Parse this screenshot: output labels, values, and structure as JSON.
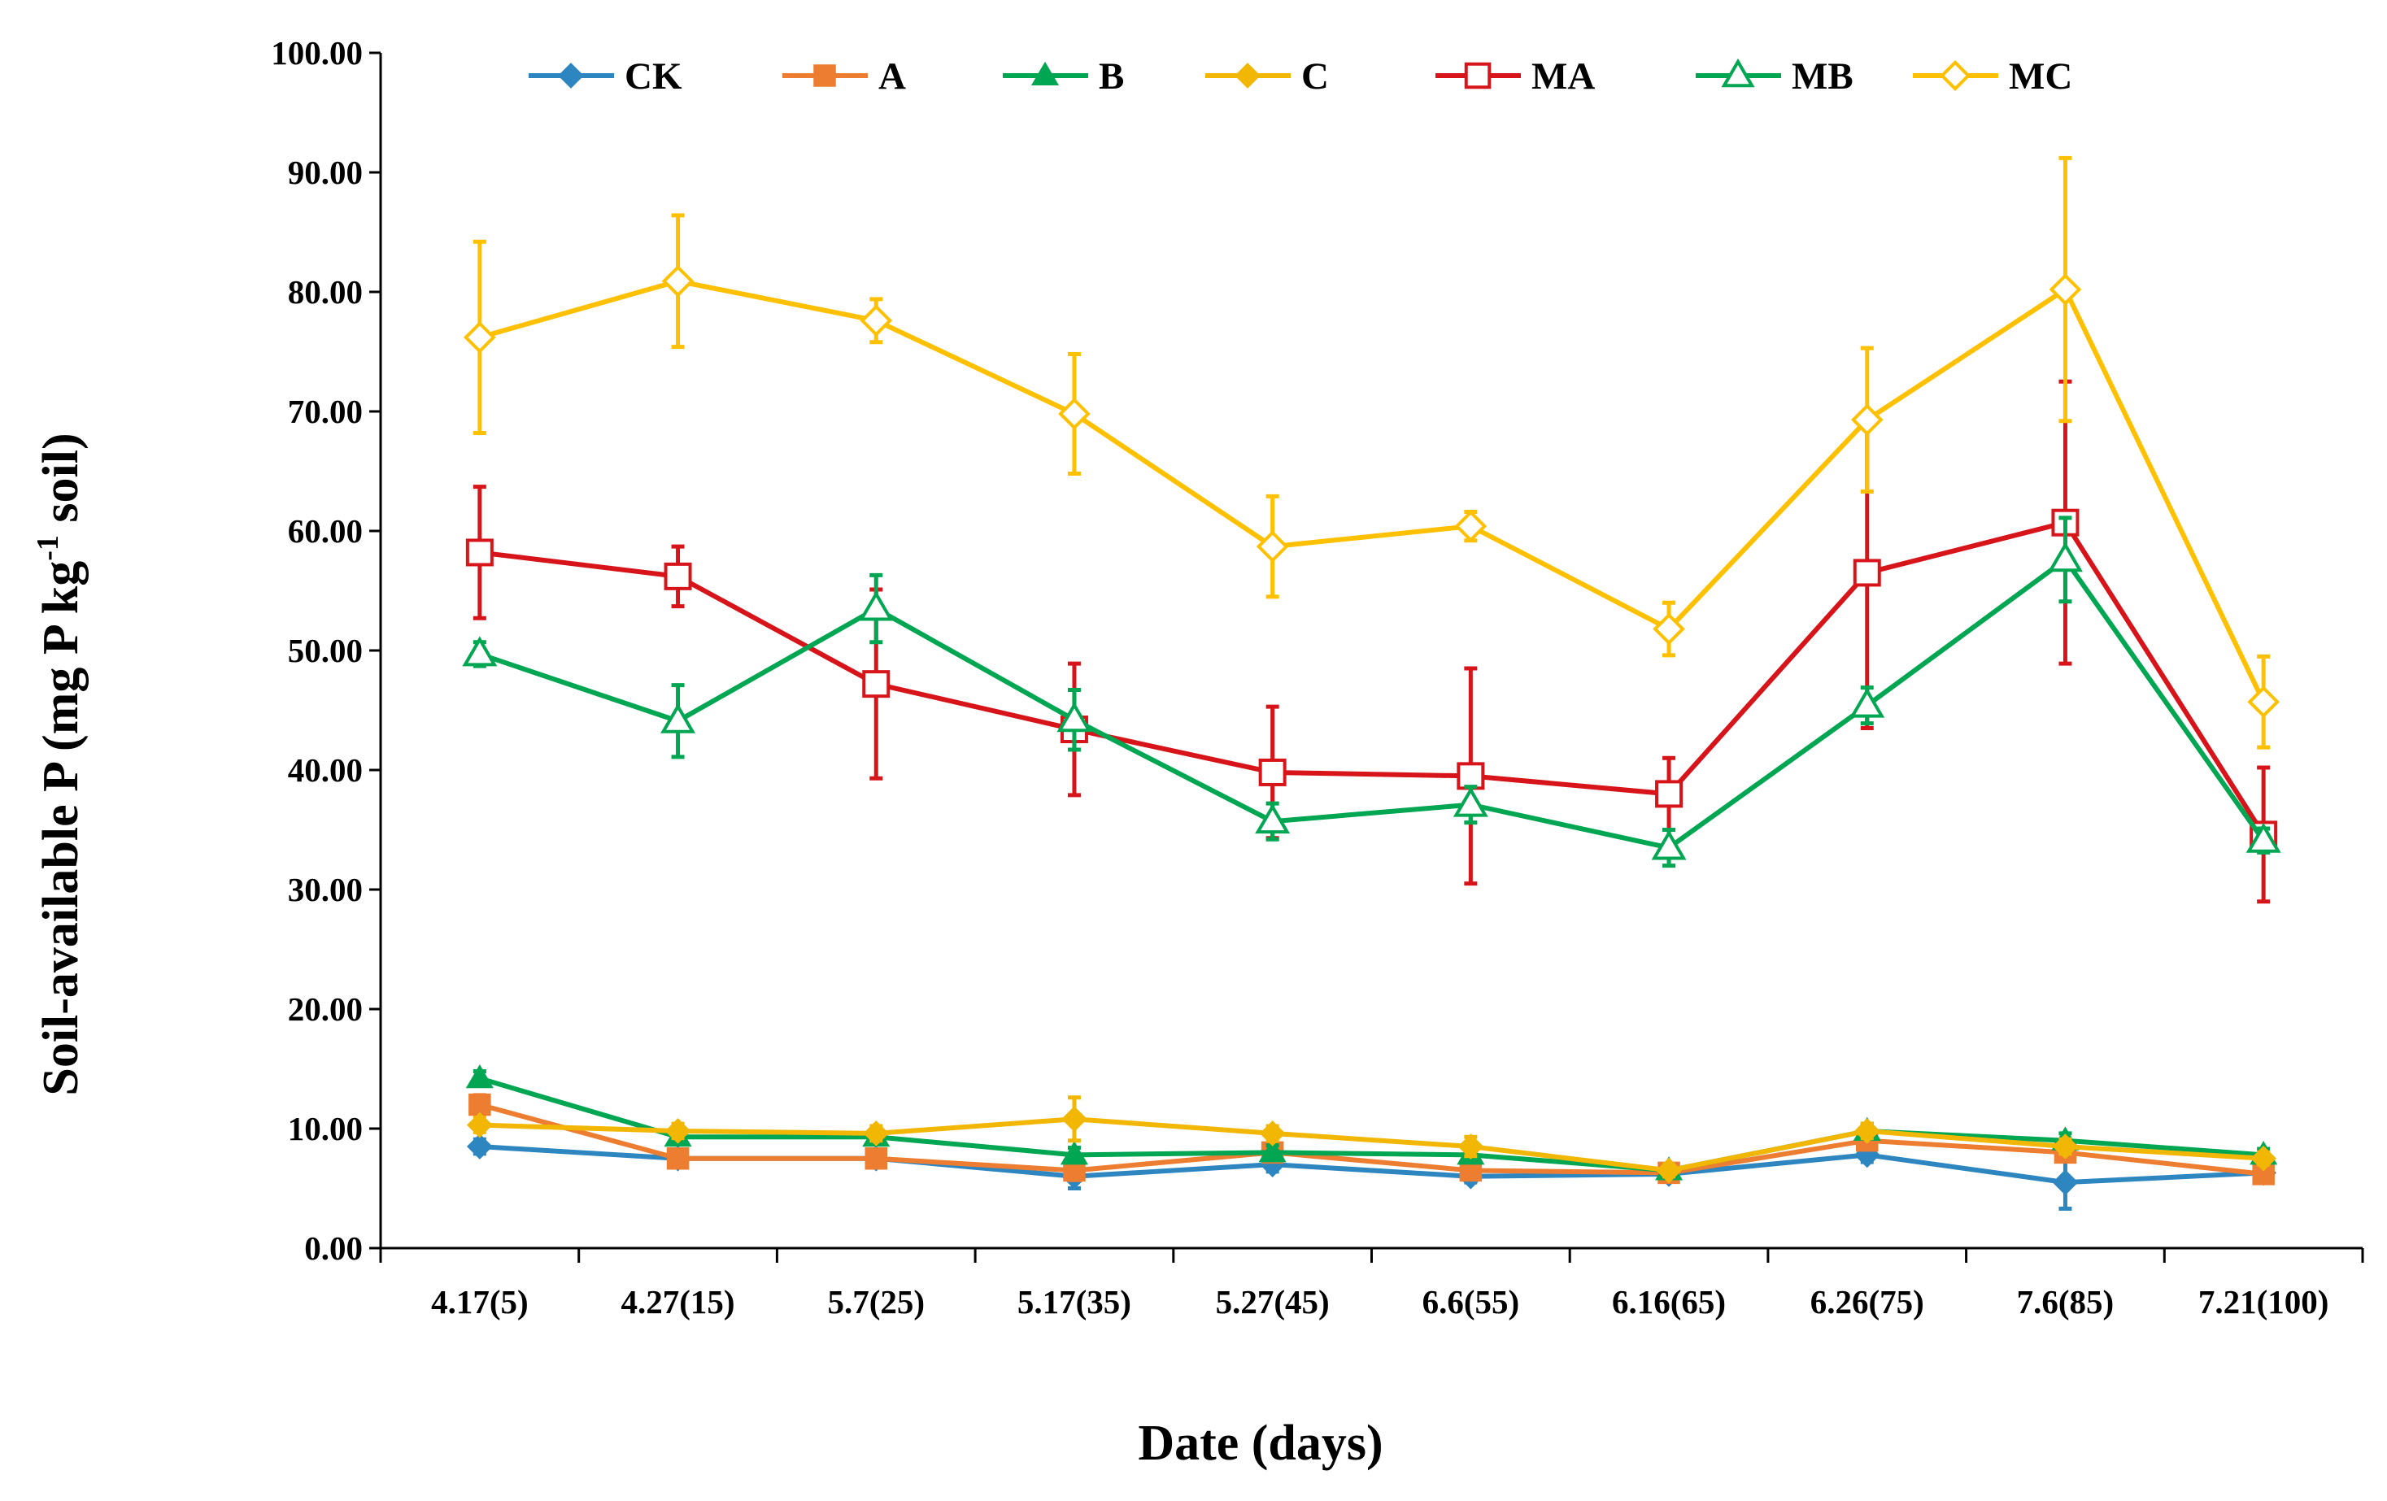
{
  "chart_data": {
    "type": "line",
    "xlabel": "Date (days)",
    "ylabel": {
      "main": "Soil-available P (mg P kg",
      "sup": "-1",
      "tail": " soil)"
    },
    "categories": [
      "4.17(5)",
      "4.27(15)",
      "5.7(25)",
      "5.17(35)",
      "5.27(45)",
      "6.6(55)",
      "6.16(65)",
      "6.26(75)",
      "7.6(85)",
      "7.21(100)"
    ],
    "ylim": [
      0,
      100
    ],
    "yticks": [
      "0.00",
      "10.00",
      "20.00",
      "30.00",
      "40.00",
      "50.00",
      "60.00",
      "70.00",
      "80.00",
      "90.00",
      "100.00"
    ],
    "grid": false,
    "legend_position": "top",
    "series": [
      {
        "name": "CK",
        "color": "#2E86C1",
        "marker": "diamond",
        "filled": true,
        "values": [
          8.5,
          7.5,
          7.5,
          6.0,
          7.0,
          6.0,
          6.2,
          7.8,
          5.5,
          6.3
        ],
        "errors": [
          0.6,
          0.5,
          0.5,
          1.0,
          0.6,
          0.5,
          0.5,
          0.6,
          2.2,
          0.5
        ]
      },
      {
        "name": "A",
        "color": "#ED7D31",
        "marker": "square",
        "filled": true,
        "values": [
          12.0,
          7.5,
          7.5,
          6.5,
          8.0,
          6.5,
          6.3,
          9.0,
          8.0,
          6.2
        ],
        "errors": [
          0.8,
          0.6,
          0.6,
          0.8,
          0.6,
          0.5,
          0.5,
          0.7,
          0.7,
          0.5
        ]
      },
      {
        "name": "B",
        "color": "#00A651",
        "marker": "triangle",
        "filled": true,
        "values": [
          14.2,
          9.3,
          9.3,
          7.8,
          8.0,
          7.8,
          6.5,
          9.8,
          9.0,
          7.8
        ],
        "errors": [
          0.6,
          0.6,
          0.6,
          0.6,
          0.6,
          0.5,
          0.5,
          0.6,
          0.6,
          0.5
        ]
      },
      {
        "name": "C",
        "color": "#F2B705",
        "marker": "diamond",
        "filled": true,
        "values": [
          10.3,
          9.8,
          9.6,
          10.8,
          9.6,
          8.5,
          6.5,
          9.8,
          8.5,
          7.5
        ],
        "errors": [
          0.6,
          0.6,
          0.6,
          1.8,
          0.6,
          0.8,
          0.5,
          0.6,
          0.6,
          0.5
        ]
      },
      {
        "name": "MA",
        "color": "#D7141A",
        "marker": "square",
        "filled": false,
        "values": [
          58.2,
          56.2,
          47.2,
          43.4,
          39.8,
          39.5,
          38.0,
          56.5,
          60.7,
          34.6
        ],
        "errors": [
          5.5,
          2.5,
          7.9,
          5.5,
          5.5,
          9.0,
          3.0,
          13.0,
          11.8,
          5.6
        ]
      },
      {
        "name": "MB",
        "color": "#00A651",
        "marker": "triangle",
        "filled": false,
        "values": [
          49.7,
          44.1,
          53.5,
          44.2,
          35.7,
          37.1,
          33.5,
          45.4,
          57.6,
          34.1
        ],
        "errors": [
          1.0,
          3.0,
          2.8,
          2.5,
          1.5,
          1.5,
          1.5,
          1.5,
          3.5,
          1.0
        ]
      },
      {
        "name": "MC",
        "color": "#FFC000",
        "marker": "diamond",
        "filled": false,
        "values": [
          76.2,
          80.9,
          77.6,
          69.8,
          58.7,
          60.4,
          51.8,
          69.3,
          80.2,
          45.7
        ],
        "errors": [
          8.0,
          5.5,
          1.8,
          5.0,
          4.2,
          1.2,
          2.2,
          6.0,
          11.0,
          3.8
        ]
      }
    ]
  }
}
